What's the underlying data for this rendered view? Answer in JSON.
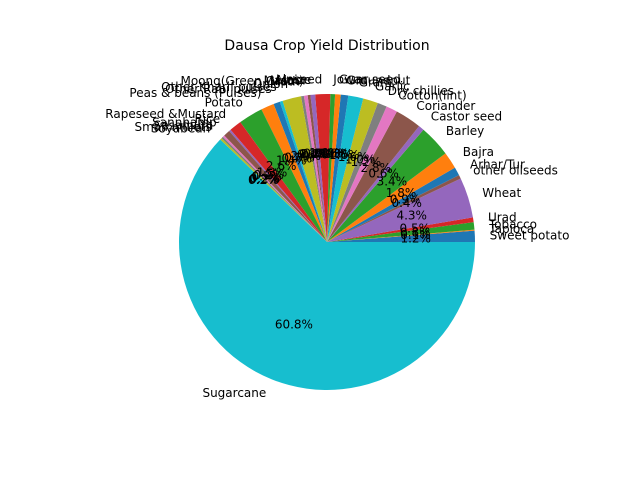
{
  "chart_data": {
    "type": "pie",
    "title": "Dausa Crop Yield Distribution",
    "start_angle_deg": 0,
    "direction": "counterclockwise",
    "percent_format": "%1.1f%%",
    "slices": [
      {
        "label": "Sweet potato",
        "value": 1.2,
        "color": "#1f77b4"
      },
      {
        "label": "Tapioca",
        "value": 0.1,
        "color": "#ff7f0e"
      },
      {
        "label": "Tobacco",
        "value": 0.8,
        "color": "#2ca02c"
      },
      {
        "label": "Urad",
        "value": 0.5,
        "color": "#d62728"
      },
      {
        "label": "Wheat",
        "value": 4.3,
        "color": "#9467bd"
      },
      {
        "label": "other oilseeds",
        "value": 0.4,
        "color": "#8c564b"
      },
      {
        "label": "Arhar/Tur",
        "value": 0.9,
        "color": "#1f77b4"
      },
      {
        "label": "Bajra",
        "value": 1.8,
        "color": "#ff7f0e"
      },
      {
        "label": "Barley",
        "value": 3.4,
        "color": "#2ca02c"
      },
      {
        "label": "Castor seed",
        "value": 0.6,
        "color": "#9467bd"
      },
      {
        "label": "Coriander",
        "value": 2.8,
        "color": "#8c564b"
      },
      {
        "label": "Cotton(lint)",
        "value": 1.2,
        "color": "#e377c2"
      },
      {
        "label": "Dry chillies",
        "value": 1.0,
        "color": "#7f7f7f"
      },
      {
        "label": "Garlic",
        "value": 1.6,
        "color": "#bcbd22"
      },
      {
        "label": "Gram",
        "value": 1.6,
        "color": "#17becf"
      },
      {
        "label": "Groundnut",
        "value": 0.8,
        "color": "#1f77b4"
      },
      {
        "label": "Guar seed",
        "value": 0.6,
        "color": "#ff7f0e"
      },
      {
        "label": "Jowar",
        "value": 0.5,
        "color": "#2ca02c"
      },
      {
        "label": "Linseed",
        "value": 1.6,
        "color": "#d62728"
      },
      {
        "label": "Maize",
        "value": 0.5,
        "color": "#9467bd"
      },
      {
        "label": "Masoor",
        "value": 0.3,
        "color": "#8c564b"
      },
      {
        "label": "Moong(Green Gram)",
        "value": 0.4,
        "color": "#e377c2"
      },
      {
        "label": "Moth",
        "value": 0.3,
        "color": "#7f7f7f"
      },
      {
        "label": "Onion",
        "value": 2.0,
        "color": "#bcbd22"
      },
      {
        "label": "Other Kharif pulses",
        "value": 0.3,
        "color": "#17becf"
      },
      {
        "label": "Other Rabi pulses",
        "value": 0.7,
        "color": "#1f77b4"
      },
      {
        "label": "Peas & beans (Pulses)",
        "value": 1.4,
        "color": "#ff7f0e"
      },
      {
        "label": "Potato",
        "value": 2.6,
        "color": "#2ca02c"
      },
      {
        "label": "Rapeseed &Mustard",
        "value": 1.3,
        "color": "#d62728"
      },
      {
        "label": "Rice",
        "value": 0.2,
        "color": "#9467bd"
      },
      {
        "label": "Sannhamp",
        "value": 0.7,
        "color": "#8c564b"
      },
      {
        "label": "Sesamum",
        "value": 0.2,
        "color": "#e377c2"
      },
      {
        "label": "Small millets",
        "value": 0.2,
        "color": "#7f7f7f"
      },
      {
        "label": "Soyabean",
        "value": 0.2,
        "color": "#bcbd22"
      },
      {
        "label": "Sugarcane",
        "value": 60.8,
        "color": "#17becf"
      }
    ]
  }
}
